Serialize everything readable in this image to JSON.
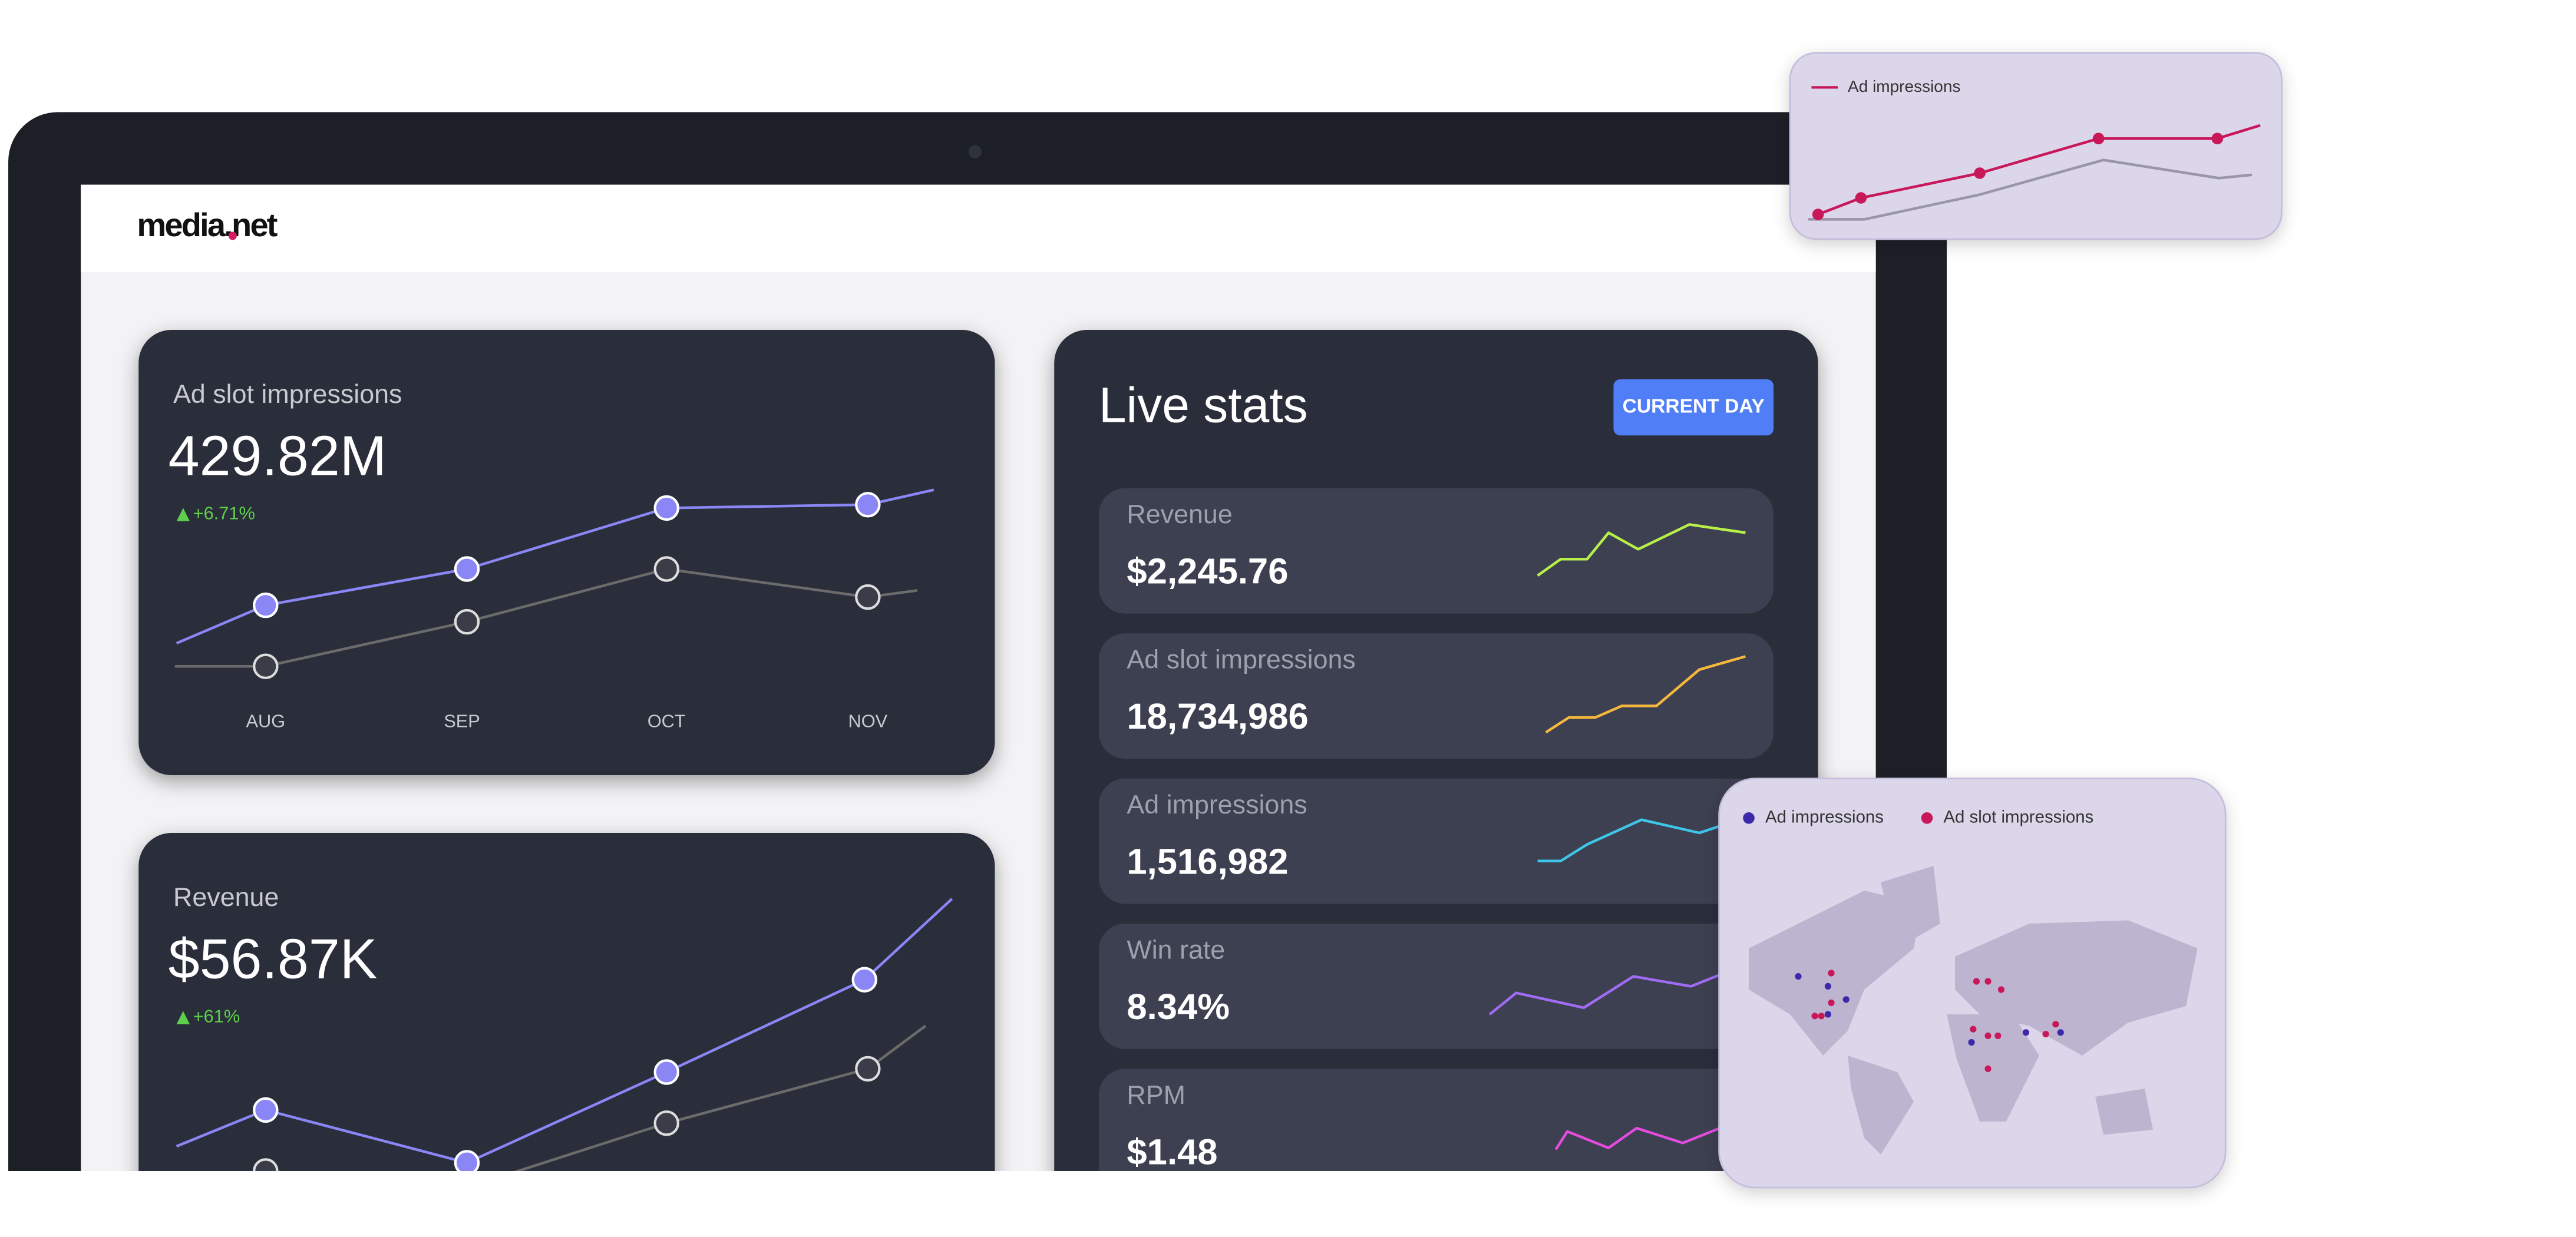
{
  "header": {
    "logo": "media.net"
  },
  "cards": [
    {
      "title": "Ad slot impressions",
      "value": "429.82M",
      "change": "+6.71%",
      "months": [
        "AUG",
        "SEP",
        "OCT",
        "NOV"
      ]
    },
    {
      "title": "Revenue",
      "value": "$56.87K",
      "change": "+61%"
    }
  ],
  "live_stats": {
    "title": "Live stats",
    "button": "CURRENT DAY",
    "rows": [
      {
        "label": "Revenue",
        "value": "$2,245.76"
      },
      {
        "label": "Ad slot impressions",
        "value": "18,734,986"
      },
      {
        "label": "Ad impressions",
        "value": "1,516,982"
      },
      {
        "label": "Win rate",
        "value": "8.34%"
      },
      {
        "label": "RPM",
        "value": "$1.48"
      }
    ]
  },
  "line_card": {
    "legend": "Ad impressions"
  },
  "map_card": {
    "legend": [
      "Ad impressions",
      "Ad slot impressions"
    ]
  }
}
